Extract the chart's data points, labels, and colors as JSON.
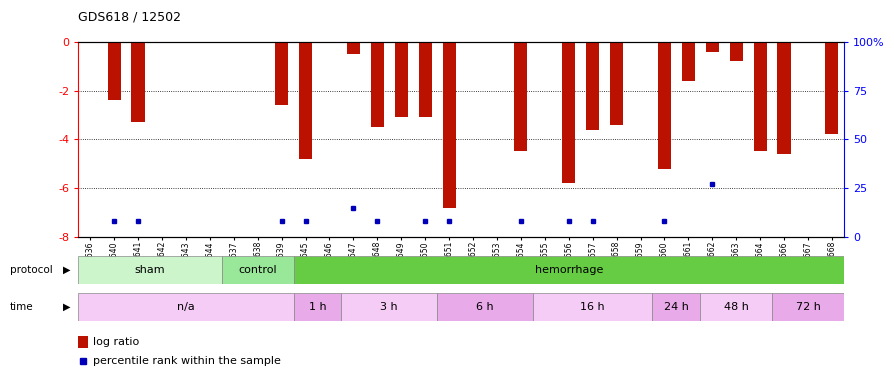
{
  "title": "GDS618 / 12502",
  "samples": [
    "GSM16636",
    "GSM16640",
    "GSM16641",
    "GSM16642",
    "GSM16643",
    "GSM16644",
    "GSM16637",
    "GSM16638",
    "GSM16639",
    "GSM16645",
    "GSM16646",
    "GSM16647",
    "GSM16648",
    "GSM16649",
    "GSM16650",
    "GSM16651",
    "GSM16652",
    "GSM16653",
    "GSM16654",
    "GSM16655",
    "GSM16656",
    "GSM16657",
    "GSM16658",
    "GSM16659",
    "GSM16660",
    "GSM16661",
    "GSM16662",
    "GSM16663",
    "GSM16664",
    "GSM16666",
    "GSM16667",
    "GSM16668"
  ],
  "log_ratio": [
    0,
    -2.4,
    -3.3,
    0,
    0,
    0,
    0,
    0,
    -2.6,
    -4.8,
    0,
    -0.5,
    -3.5,
    -3.1,
    -3.1,
    -6.8,
    0,
    0,
    -4.5,
    0,
    -5.8,
    -3.6,
    -3.4,
    0,
    -5.2,
    -1.6,
    -0.4,
    -0.8,
    -4.5,
    -4.6,
    0,
    -3.8
  ],
  "percentile": [
    0,
    8,
    8,
    0,
    0,
    0,
    0,
    0,
    8,
    8,
    0,
    15,
    8,
    0,
    8,
    8,
    0,
    0,
    8,
    0,
    8,
    8,
    0,
    0,
    8,
    0,
    27,
    0,
    0,
    0,
    0,
    0
  ],
  "protocol_groups": [
    {
      "label": "sham",
      "start": 0,
      "end": 6,
      "color": "#ccf5cc"
    },
    {
      "label": "control",
      "start": 6,
      "end": 9,
      "color": "#99e899"
    },
    {
      "label": "hemorrhage",
      "start": 9,
      "end": 32,
      "color": "#66cc44"
    }
  ],
  "time_groups": [
    {
      "label": "n/a",
      "start": 0,
      "end": 9,
      "color": "#f5ccf5"
    },
    {
      "label": "1 h",
      "start": 9,
      "end": 11,
      "color": "#e8aae8"
    },
    {
      "label": "3 h",
      "start": 11,
      "end": 15,
      "color": "#f5ccf5"
    },
    {
      "label": "6 h",
      "start": 15,
      "end": 19,
      "color": "#e8aae8"
    },
    {
      "label": "16 h",
      "start": 19,
      "end": 24,
      "color": "#f5ccf5"
    },
    {
      "label": "24 h",
      "start": 24,
      "end": 26,
      "color": "#e8aae8"
    },
    {
      "label": "48 h",
      "start": 26,
      "end": 29,
      "color": "#f5ccf5"
    },
    {
      "label": "72 h",
      "start": 29,
      "end": 32,
      "color": "#e8aae8"
    }
  ],
  "bar_color": "#bb1100",
  "dot_color": "#0000bb",
  "ylim_min": -8,
  "ylim_max": 0,
  "y2lim_min": 0,
  "y2lim_max": 100,
  "yticks": [
    0,
    -2,
    -4,
    -6,
    -8
  ],
  "y2ticks": [
    100,
    75,
    50,
    25,
    0
  ],
  "y2ticklabels": [
    "100%",
    "75",
    "50",
    "25",
    "0"
  ]
}
